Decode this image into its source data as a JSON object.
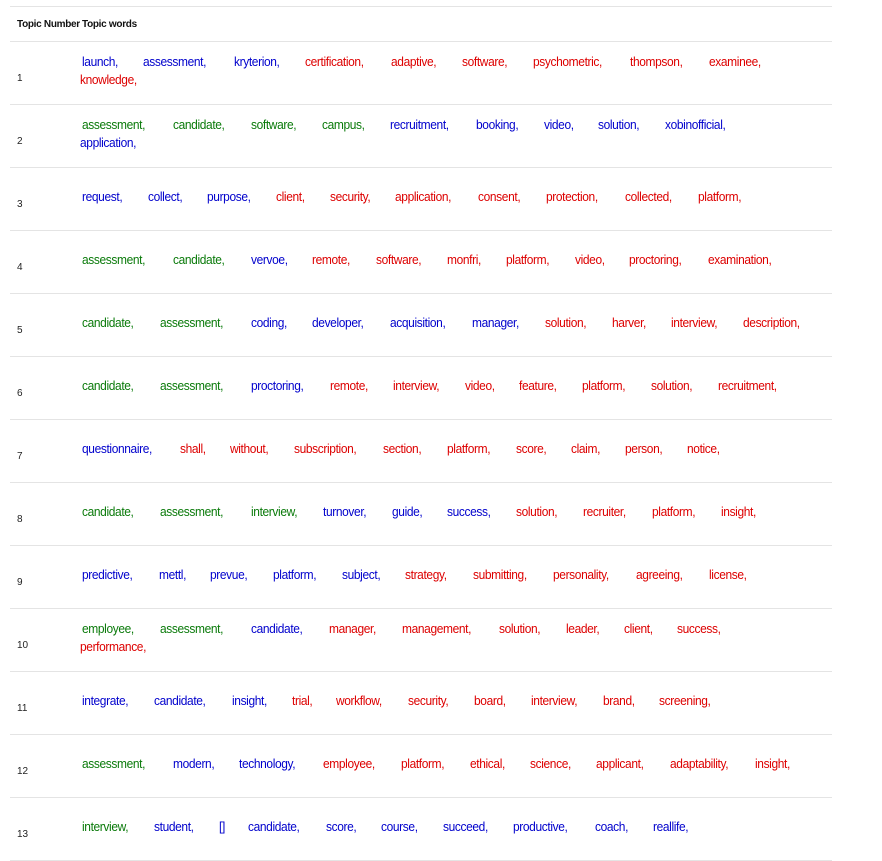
{
  "headers": {
    "topic_number": "Topic Number",
    "topic_words": "Topic words"
  },
  "colors": {
    "blue": "#0000cc",
    "green": "#0a7a0a",
    "red": "#dd0000"
  },
  "rows": [
    {
      "num": "1",
      "words": [
        {
          "t": "launch,",
          "c": "blue"
        },
        {
          "t": "assessment,",
          "c": "blue"
        },
        {
          "t": "kryterion,",
          "c": "blue"
        },
        {
          "t": "certification,",
          "c": "red"
        },
        {
          "t": "adaptive,",
          "c": "red"
        },
        {
          "t": "software,",
          "c": "red"
        },
        {
          "t": "psychometric,",
          "c": "red"
        },
        {
          "t": "thompson,",
          "c": "red"
        },
        {
          "t": "examinee,",
          "c": "red"
        },
        {
          "t": "knowledge,",
          "c": "red"
        }
      ]
    },
    {
      "num": "2",
      "words": [
        {
          "t": "assessment,",
          "c": "green"
        },
        {
          "t": "candidate,",
          "c": "green"
        },
        {
          "t": "software,",
          "c": "green"
        },
        {
          "t": "campus,",
          "c": "green"
        },
        {
          "t": "recruitment,",
          "c": "blue"
        },
        {
          "t": "booking,",
          "c": "blue"
        },
        {
          "t": "video,",
          "c": "blue"
        },
        {
          "t": "solution,",
          "c": "blue"
        },
        {
          "t": "xobinofficial,",
          "c": "blue"
        },
        {
          "t": "application,",
          "c": "blue"
        }
      ]
    },
    {
      "num": "3",
      "words": [
        {
          "t": "request,",
          "c": "blue"
        },
        {
          "t": "collect,",
          "c": "blue"
        },
        {
          "t": "purpose,",
          "c": "blue"
        },
        {
          "t": "client,",
          "c": "red"
        },
        {
          "t": "security,",
          "c": "red"
        },
        {
          "t": "application,",
          "c": "red"
        },
        {
          "t": "consent,",
          "c": "red"
        },
        {
          "t": "protection,",
          "c": "red"
        },
        {
          "t": "collected,",
          "c": "red"
        },
        {
          "t": "platform,",
          "c": "red"
        }
      ]
    },
    {
      "num": "4",
      "words": [
        {
          "t": "assessment,",
          "c": "green"
        },
        {
          "t": "candidate,",
          "c": "green"
        },
        {
          "t": "vervoe,",
          "c": "blue"
        },
        {
          "t": "remote,",
          "c": "red"
        },
        {
          "t": "software,",
          "c": "red"
        },
        {
          "t": "monfri,",
          "c": "red"
        },
        {
          "t": "platform,",
          "c": "red"
        },
        {
          "t": "video,",
          "c": "red"
        },
        {
          "t": "proctoring,",
          "c": "red"
        },
        {
          "t": "examination,",
          "c": "red"
        }
      ]
    },
    {
      "num": "5",
      "words": [
        {
          "t": "candidate,",
          "c": "green"
        },
        {
          "t": "assessment,",
          "c": "green"
        },
        {
          "t": "coding,",
          "c": "blue"
        },
        {
          "t": "developer,",
          "c": "blue"
        },
        {
          "t": "acquisition,",
          "c": "blue"
        },
        {
          "t": "manager,",
          "c": "blue"
        },
        {
          "t": "solution,",
          "c": "red"
        },
        {
          "t": "harver,",
          "c": "red"
        },
        {
          "t": "interview,",
          "c": "red"
        },
        {
          "t": "description,",
          "c": "red"
        }
      ]
    },
    {
      "num": "6",
      "words": [
        {
          "t": "candidate,",
          "c": "green"
        },
        {
          "t": "assessment,",
          "c": "green"
        },
        {
          "t": "proctoring,",
          "c": "blue"
        },
        {
          "t": "remote,",
          "c": "red"
        },
        {
          "t": "interview,",
          "c": "red"
        },
        {
          "t": "video,",
          "c": "red"
        },
        {
          "t": "feature,",
          "c": "red"
        },
        {
          "t": "platform,",
          "c": "red"
        },
        {
          "t": "solution,",
          "c": "red"
        },
        {
          "t": "recruitment,",
          "c": "red"
        }
      ]
    },
    {
      "num": "7",
      "words": [
        {
          "t": "questionnaire,",
          "c": "blue"
        },
        {
          "t": "shall,",
          "c": "red"
        },
        {
          "t": "without,",
          "c": "red"
        },
        {
          "t": "subscription,",
          "c": "red"
        },
        {
          "t": "section,",
          "c": "red"
        },
        {
          "t": "platform,",
          "c": "red"
        },
        {
          "t": "score,",
          "c": "red"
        },
        {
          "t": "claim,",
          "c": "red"
        },
        {
          "t": "person,",
          "c": "red"
        },
        {
          "t": "notice,",
          "c": "red"
        }
      ]
    },
    {
      "num": "8",
      "words": [
        {
          "t": "candidate,",
          "c": "green"
        },
        {
          "t": "assessment,",
          "c": "green"
        },
        {
          "t": "interview,",
          "c": "green"
        },
        {
          "t": "turnover,",
          "c": "blue"
        },
        {
          "t": "guide,",
          "c": "blue"
        },
        {
          "t": "success,",
          "c": "blue"
        },
        {
          "t": "solution,",
          "c": "red"
        },
        {
          "t": "recruiter,",
          "c": "red"
        },
        {
          "t": "platform,",
          "c": "red"
        },
        {
          "t": "insight,",
          "c": "red"
        }
      ]
    },
    {
      "num": "9",
      "words": [
        {
          "t": "predictive,",
          "c": "blue"
        },
        {
          "t": "mettl,",
          "c": "blue"
        },
        {
          "t": "prevue,",
          "c": "blue"
        },
        {
          "t": "platform,",
          "c": "blue"
        },
        {
          "t": "subject,",
          "c": "blue"
        },
        {
          "t": "strategy,",
          "c": "red"
        },
        {
          "t": "submitting,",
          "c": "red"
        },
        {
          "t": "personality,",
          "c": "red"
        },
        {
          "t": "agreeing,",
          "c": "red"
        },
        {
          "t": "license,",
          "c": "red"
        }
      ]
    },
    {
      "num": "10",
      "words": [
        {
          "t": "employee,",
          "c": "green"
        },
        {
          "t": "assessment,",
          "c": "green"
        },
        {
          "t": "candidate,",
          "c": "blue"
        },
        {
          "t": "manager,",
          "c": "red"
        },
        {
          "t": "management,",
          "c": "red"
        },
        {
          "t": "solution,",
          "c": "red"
        },
        {
          "t": "leader,",
          "c": "red"
        },
        {
          "t": "client,",
          "c": "red"
        },
        {
          "t": "success,",
          "c": "red"
        },
        {
          "t": "performance,",
          "c": "red"
        }
      ]
    },
    {
      "num": "11",
      "words": [
        {
          "t": "integrate,",
          "c": "blue"
        },
        {
          "t": "candidate,",
          "c": "blue"
        },
        {
          "t": "insight,",
          "c": "blue"
        },
        {
          "t": "trial,",
          "c": "red"
        },
        {
          "t": "workflow,",
          "c": "red"
        },
        {
          "t": "security,",
          "c": "red"
        },
        {
          "t": "board,",
          "c": "red"
        },
        {
          "t": "interview,",
          "c": "red"
        },
        {
          "t": "brand,",
          "c": "red"
        },
        {
          "t": "screening,",
          "c": "red"
        }
      ]
    },
    {
      "num": "12",
      "words": [
        {
          "t": "assessment,",
          "c": "green"
        },
        {
          "t": "modern,",
          "c": "blue"
        },
        {
          "t": "technology,",
          "c": "blue"
        },
        {
          "t": "employee,",
          "c": "red"
        },
        {
          "t": "platform,",
          "c": "red"
        },
        {
          "t": "ethical,",
          "c": "red"
        },
        {
          "t": "science,",
          "c": "red"
        },
        {
          "t": "applicant,",
          "c": "red"
        },
        {
          "t": "adaptability,",
          "c": "red"
        },
        {
          "t": "insight,",
          "c": "red"
        }
      ]
    },
    {
      "num": "13",
      "words": [
        {
          "t": "interview,",
          "c": "green"
        },
        {
          "t": "student,",
          "c": "blue"
        },
        {
          "t": "[]",
          "c": "blue"
        },
        {
          "t": "candidate,",
          "c": "blue"
        },
        {
          "t": "score,",
          "c": "blue"
        },
        {
          "t": "course,",
          "c": "blue"
        },
        {
          "t": "succeed,",
          "c": "blue"
        },
        {
          "t": "productive,",
          "c": "blue"
        },
        {
          "t": "coach,",
          "c": "blue"
        },
        {
          "t": "reallife,",
          "c": "blue"
        }
      ]
    }
  ]
}
